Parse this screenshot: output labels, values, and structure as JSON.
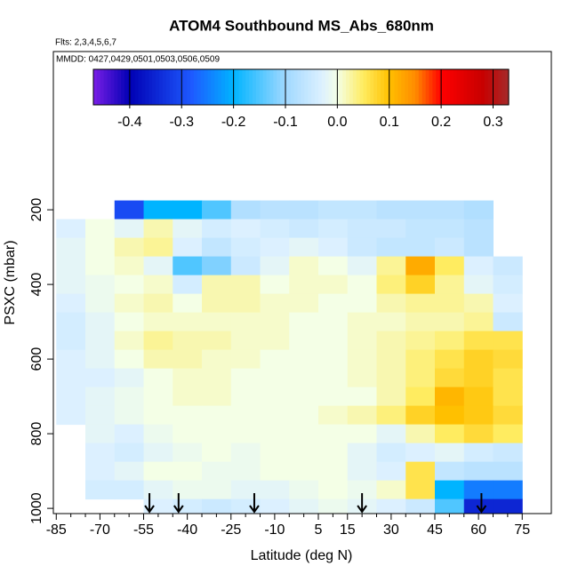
{
  "chart_data": {
    "type": "heatmap",
    "title": "ATOM4 Southbound MS_Abs_680nm",
    "subtitle": "Flts: 2,3,4,5,6,7",
    "annotation": "MMDD: 0427,0429,0501,0503,0506,0509",
    "x_label": "Latitude (deg N)",
    "y_label": "PSXC (mbar)",
    "xlim": [
      -86,
      85
    ],
    "ylim": [
      1014,
      -224
    ],
    "xticks": [
      -85,
      -70,
      -55,
      -40,
      -25,
      -10,
      5,
      15,
      30,
      45,
      60,
      75
    ],
    "xticks_minor": [
      -80,
      -75,
      -65,
      -60,
      -50,
      -45,
      -35,
      -30,
      -20,
      -15,
      -5,
      0,
      10,
      20,
      25,
      35,
      40,
      50,
      55,
      65,
      70
    ],
    "yticks": [
      200,
      400,
      600,
      800,
      1000
    ],
    "lat_bins": [
      -85,
      -75,
      -65,
      -55,
      -45,
      -35,
      -25,
      -15,
      -5,
      5,
      15,
      25,
      35,
      45,
      55,
      65,
      75
    ],
    "pressure_bins": [
      175,
      225,
      275,
      325,
      375,
      425,
      475,
      525,
      575,
      625,
      675,
      725,
      775,
      825,
      875,
      925,
      975,
      1025
    ],
    "z": [
      [
        null,
        null,
        -0.3,
        -0.2,
        -0.2,
        -0.15,
        -0.08,
        -0.07,
        -0.07,
        -0.06,
        -0.06,
        -0.07,
        -0.07,
        -0.07,
        -0.08,
        null
      ],
      [
        -0.03,
        0.0,
        -0.02,
        0.02,
        -0.02,
        -0.04,
        -0.03,
        -0.04,
        -0.05,
        -0.04,
        -0.05,
        -0.05,
        -0.06,
        -0.06,
        -0.07,
        null
      ],
      [
        -0.02,
        0.0,
        0.02,
        0.03,
        -0.03,
        -0.06,
        -0.04,
        -0.03,
        -0.02,
        -0.03,
        -0.05,
        -0.06,
        -0.06,
        -0.05,
        -0.07,
        null
      ],
      [
        -0.02,
        0.0,
        0.01,
        -0.02,
        -0.15,
        -0.12,
        -0.05,
        -0.02,
        0.01,
        0.0,
        -0.02,
        0.03,
        0.12,
        0.05,
        -0.03,
        -0.05
      ],
      [
        -0.02,
        -0.01,
        0.0,
        0.01,
        -0.04,
        0.02,
        0.02,
        0.0,
        0.01,
        0.01,
        0.0,
        0.04,
        0.08,
        0.03,
        -0.02,
        -0.04
      ],
      [
        -0.03,
        -0.01,
        0.01,
        0.02,
        0.0,
        0.02,
        0.02,
        0.01,
        0.01,
        0.0,
        0.0,
        0.02,
        0.03,
        0.03,
        0.02,
        -0.03
      ],
      [
        -0.04,
        -0.02,
        0.0,
        0.01,
        0.01,
        0.01,
        0.01,
        0.01,
        0.0,
        0.0,
        0.01,
        0.01,
        0.02,
        0.02,
        0.03,
        -0.05
      ],
      [
        -0.04,
        -0.02,
        0.01,
        0.03,
        0.02,
        0.02,
        0.01,
        0.01,
        0.0,
        0.0,
        0.01,
        0.02,
        0.03,
        0.04,
        0.06,
        0.06
      ],
      [
        -0.03,
        -0.02,
        0.0,
        0.02,
        0.02,
        0.01,
        0.01,
        0.0,
        0.0,
        0.0,
        0.01,
        0.02,
        0.04,
        0.06,
        0.08,
        0.07
      ],
      [
        -0.03,
        -0.03,
        -0.02,
        0.0,
        0.01,
        0.01,
        0.0,
        0.0,
        0.0,
        0.0,
        0.01,
        0.02,
        0.04,
        0.07,
        0.08,
        0.06
      ],
      [
        -0.03,
        -0.02,
        -0.01,
        0.0,
        0.01,
        0.01,
        0.0,
        0.0,
        0.0,
        0.0,
        0.0,
        0.02,
        0.05,
        0.11,
        0.09,
        0.06
      ],
      [
        -0.03,
        -0.02,
        -0.01,
        0.0,
        0.0,
        0.0,
        0.0,
        0.0,
        0.0,
        0.01,
        0.02,
        0.04,
        0.08,
        0.1,
        0.09,
        0.07
      ],
      [
        null,
        -0.02,
        -0.03,
        -0.01,
        0.0,
        0.0,
        0.0,
        0.0,
        0.0,
        0.0,
        0.0,
        -0.02,
        0.02,
        0.05,
        0.07,
        0.05
      ],
      [
        null,
        -0.03,
        -0.04,
        -0.02,
        -0.01,
        0.0,
        -0.01,
        0.0,
        0.0,
        0.0,
        -0.02,
        -0.04,
        -0.03,
        -0.02,
        -0.04,
        -0.05
      ],
      [
        null,
        -0.03,
        -0.02,
        0.0,
        0.0,
        -0.01,
        -0.01,
        0.0,
        0.0,
        0.0,
        -0.02,
        -0.03,
        0.06,
        -0.06,
        -0.07,
        -0.07
      ],
      [
        null,
        -0.04,
        -0.04,
        -0.02,
        -0.01,
        -0.01,
        -0.02,
        -0.02,
        -0.01,
        0.0,
        -0.01,
        0.01,
        0.06,
        -0.2,
        -0.25,
        -0.25
      ],
      [
        null,
        null,
        null,
        -0.03,
        -0.04,
        -0.05,
        -0.04,
        -0.03,
        -0.02,
        -0.01,
        -0.02,
        -0.03,
        -0.05,
        -0.15,
        -0.35,
        -0.35
      ]
    ],
    "arrows_lat": [
      -53,
      -43,
      -17,
      20,
      61
    ],
    "clim": [
      -0.47,
      0.33
    ],
    "cticks": [
      -0.4,
      -0.3,
      -0.2,
      -0.1,
      {
        "value": 0,
        "label": "0.0"
      },
      0.1,
      0.2,
      0.3
    ],
    "colorscale": [
      [
        -0.47,
        "#7a1ee6"
      ],
      [
        -0.4,
        "#0000b4"
      ],
      [
        -0.28,
        "#1e5aff"
      ],
      [
        -0.2,
        "#00b4ff"
      ],
      [
        -0.1,
        "#a0d8ff"
      ],
      [
        -0.03,
        "#dcf0ff"
      ],
      [
        0,
        "#f4ffe6"
      ],
      [
        0.05,
        "#ffec60"
      ],
      [
        0.1,
        "#ffc000"
      ],
      [
        0.15,
        "#ff8c00"
      ],
      [
        0.2,
        "#ff0000"
      ],
      [
        0.28,
        "#c80000"
      ],
      [
        0.33,
        "#a52a2a"
      ]
    ]
  }
}
